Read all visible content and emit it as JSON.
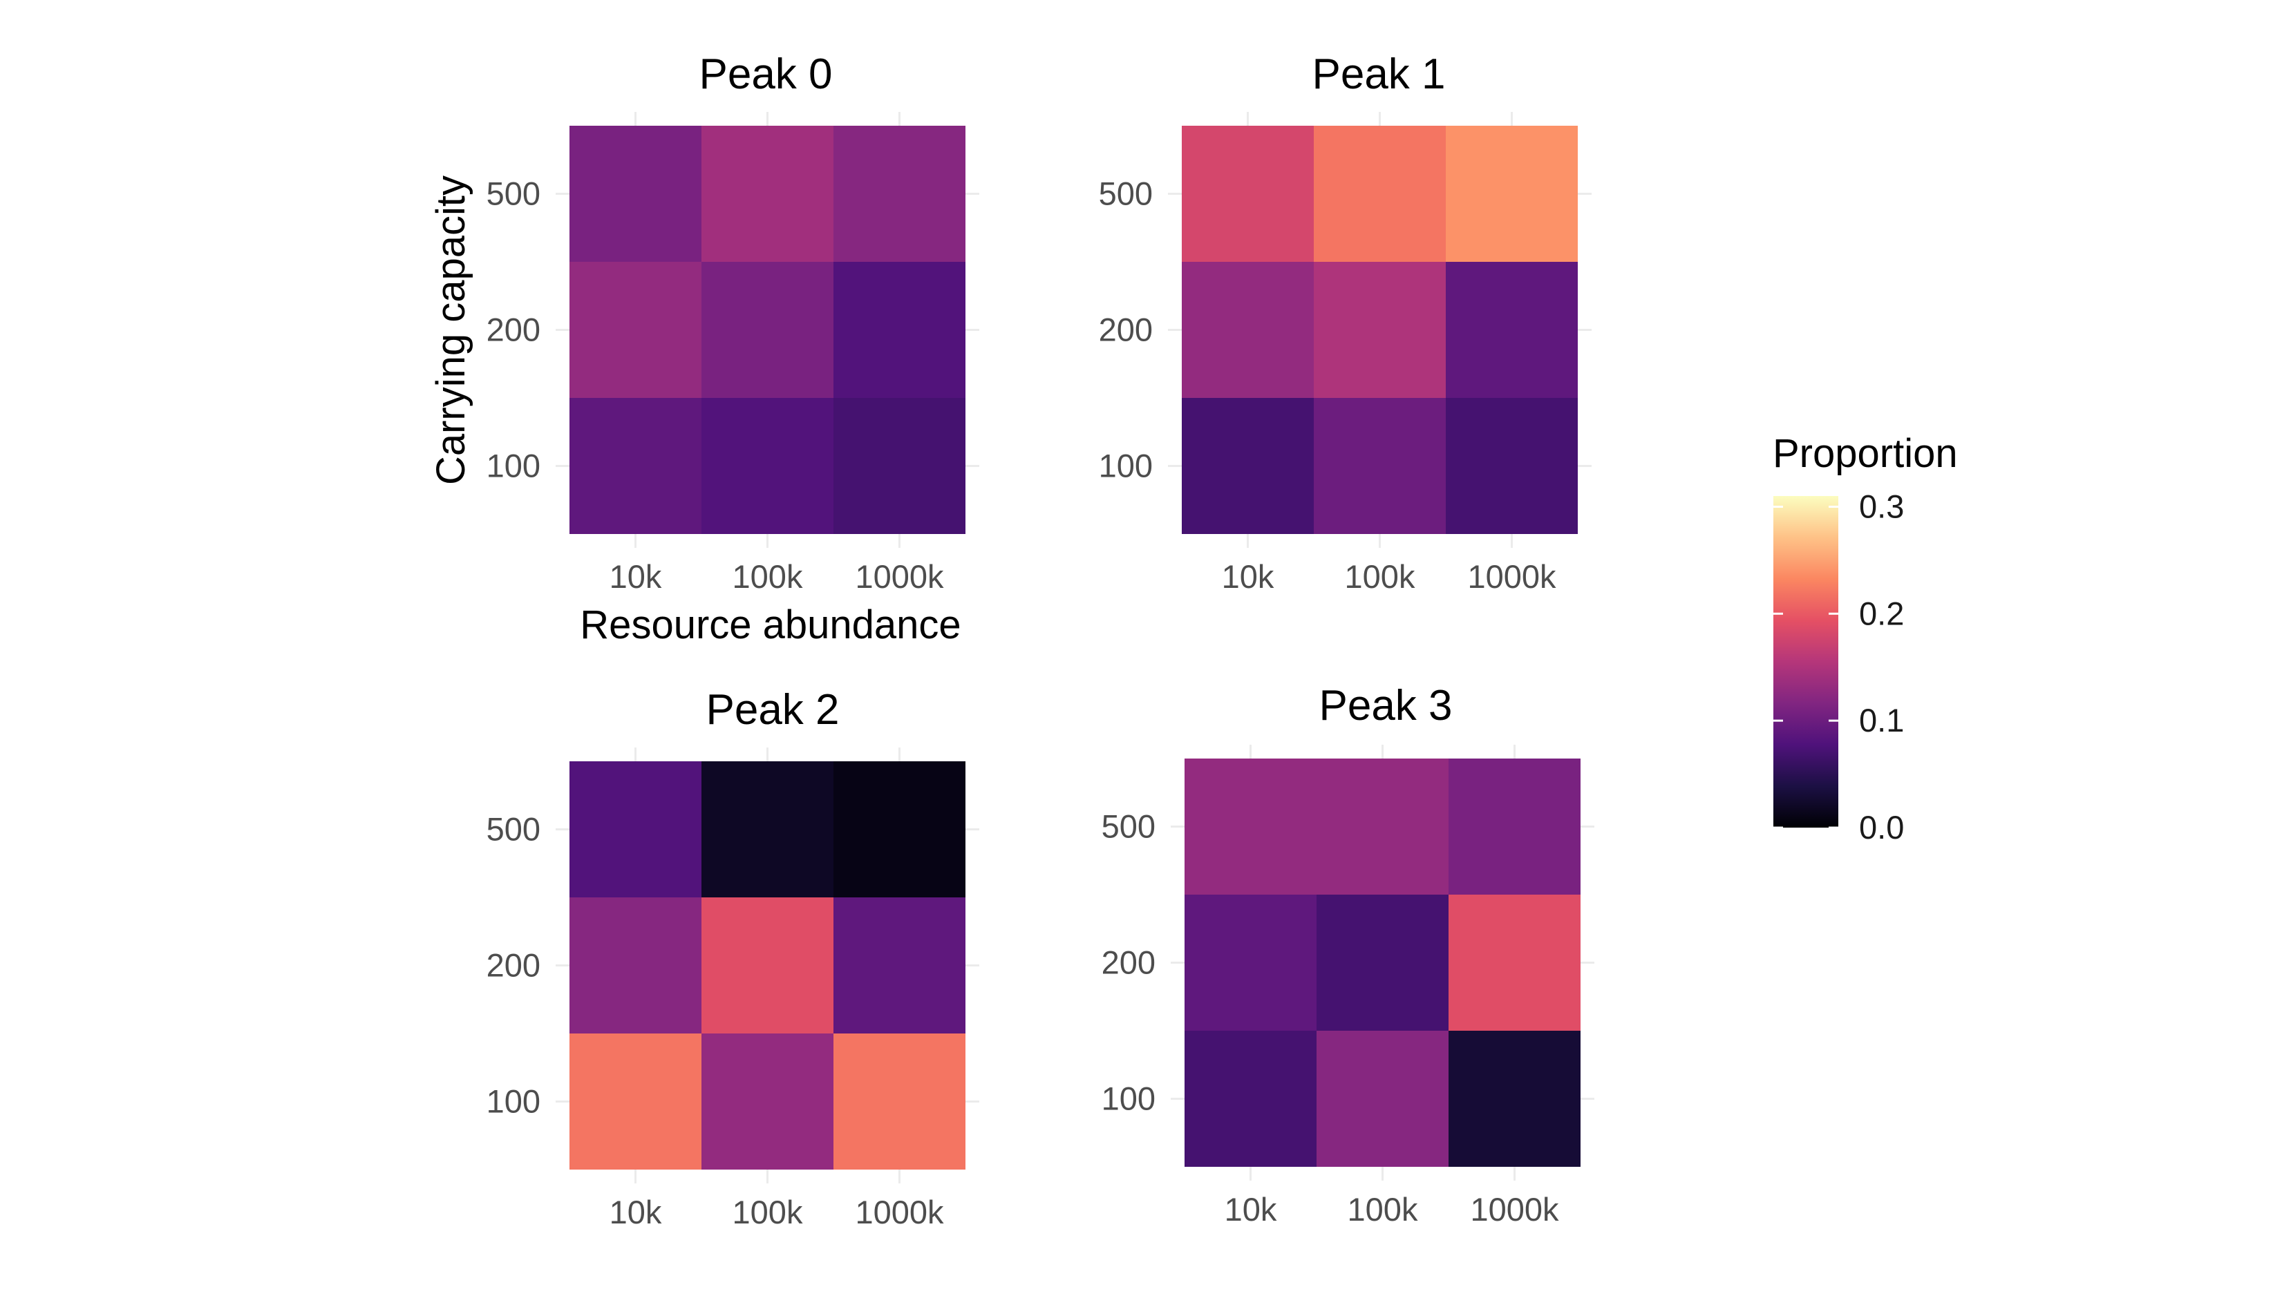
{
  "chart_data": {
    "type": "heatmap",
    "x_categories": [
      "10k",
      "100k",
      "1000k"
    ],
    "y_categories": [
      "100",
      "200",
      "500"
    ],
    "xlabel": "Resource abundance",
    "ylabel": "Carrying capacity",
    "panels": [
      {
        "title": "Peak 0",
        "values": [
          [
            0.09,
            0.08,
            0.07
          ],
          [
            0.13,
            0.11,
            0.08
          ],
          [
            0.11,
            0.14,
            0.12
          ]
        ]
      },
      {
        "title": "Peak 1",
        "values": [
          [
            0.07,
            0.1,
            0.07
          ],
          [
            0.13,
            0.15,
            0.09
          ],
          [
            0.18,
            0.22,
            0.24
          ]
        ]
      },
      {
        "title": "Peak 2",
        "values": [
          [
            0.22,
            0.13,
            0.22
          ],
          [
            0.12,
            0.19,
            0.09
          ],
          [
            0.08,
            0.02,
            0.01
          ]
        ]
      },
      {
        "title": "Peak 3",
        "values": [
          [
            0.07,
            0.12,
            0.03
          ],
          [
            0.09,
            0.07,
            0.19
          ],
          [
            0.13,
            0.13,
            0.11
          ]
        ]
      }
    ],
    "legend": {
      "title": "Proportion",
      "ticks": [
        "0.0",
        "0.1",
        "0.2",
        "0.3"
      ],
      "tick_values": [
        0.0,
        0.1,
        0.2,
        0.3
      ],
      "range": [
        0,
        0.31
      ],
      "placement": "right",
      "palette": "magma"
    },
    "grid": true
  }
}
